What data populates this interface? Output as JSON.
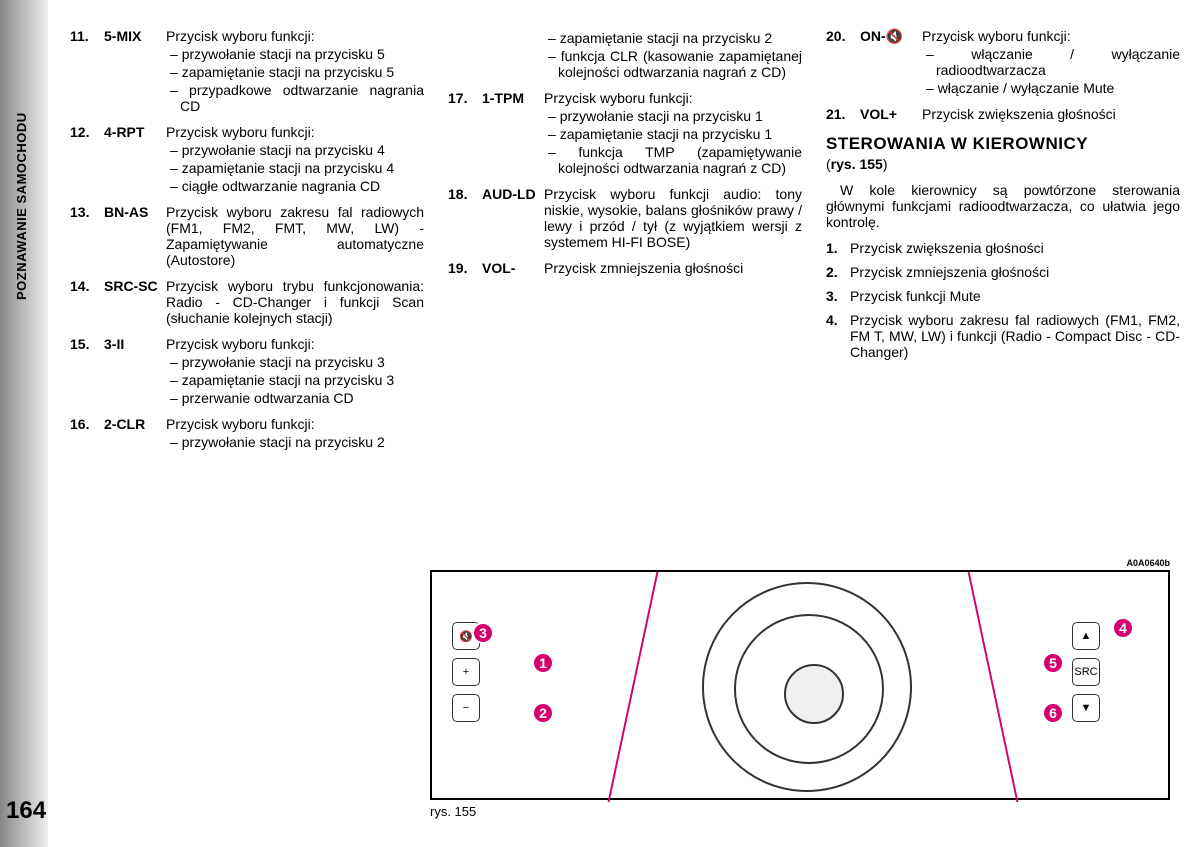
{
  "sideTab": "POZNAWANIE SAMOCHODU",
  "pageNumber": "164",
  "col1": [
    {
      "num": "11.",
      "label": "5-MIX",
      "lead": "Przycisk wyboru funkcji:",
      "subs": [
        "przywołanie stacji na przycisku 5",
        "zapamiętanie stacji na przycisku 5",
        "przypadkowe odtwarzanie nagrania CD"
      ]
    },
    {
      "num": "12.",
      "label": "4-RPT",
      "lead": "Przycisk wyboru funkcji:",
      "subs": [
        "przywołanie stacji na przycisku 4",
        "zapamiętanie stacji na przycisku 4",
        "ciągłe odtwarzanie nagrania CD"
      ]
    },
    {
      "num": "13.",
      "label": "BN-AS",
      "lead": "Przycisk wyboru zakresu fal radiowych (FM1, FM2, FMT, MW, LW) - Zapamiętywanie automatyczne (Autostore)",
      "subs": []
    },
    {
      "num": "14.",
      "label": "SRC-SC",
      "lead": "Przycisk wyboru trybu funkcjonowania: Radio - CD-Changer i funkcji Scan (słuchanie kolejnych stacji)",
      "subs": []
    },
    {
      "num": "15.",
      "label": "3-II",
      "lead": "Przycisk wyboru funkcji:",
      "subs": [
        "przywołanie stacji na przycisku 3",
        "zapamiętanie stacji na przycisku 3",
        "przerwanie odtwarzania CD"
      ]
    },
    {
      "num": "16.",
      "label": "2-CLR",
      "lead": "Przycisk wyboru funkcji:",
      "subs": [
        "przywołanie stacji na przycisku 2"
      ]
    }
  ],
  "col2top": {
    "subs": [
      "zapamiętanie stacji na przycisku 2",
      "funkcja CLR (kasowanie zapamiętanej kolejności odtwarzania nagrań z CD)"
    ]
  },
  "col2": [
    {
      "num": "17.",
      "label": "1-TPM",
      "lead": "Przycisk wyboru funkcji:",
      "subs": [
        "przywołanie stacji na przycisku 1",
        "zapamiętanie stacji na przycisku 1",
        "funkcja TMP (zapamiętywanie kolejności odtwarzania nagrań z CD)"
      ]
    },
    {
      "num": "18.",
      "label": "AUD-LD",
      "lead": "Przycisk wyboru funkcji audio: tony niskie, wysokie, balans głośników prawy / lewy i przód / tył (z wyjątkiem wersji z systemem HI-FI BOSE)",
      "subs": []
    },
    {
      "num": "19.",
      "label": "VOL-",
      "lead": "Przycisk zmniejszenia głośności",
      "subs": []
    }
  ],
  "col3top": [
    {
      "num": "20.",
      "label": "ON-🔇",
      "lead": "Przycisk wyboru funkcji:",
      "subs": [
        "włączanie / wyłączanie radioodtwarzacza",
        "włączanie / wyłączanie Mute"
      ]
    },
    {
      "num": "21.",
      "label": "VOL+",
      "lead": "Przycisk zwiększenia głośności",
      "subs": []
    }
  ],
  "heading": "STEROWANIA W KIEROWNICY",
  "subhead": "(rys. 155)",
  "para": "W kole kierownicy są powtórzone sterowania głównymi funkcjami radioodtwarzacza, co ułatwia jego kontrolę.",
  "numlist": [
    {
      "n": "1.",
      "t": "Przycisk zwiększenia głośności"
    },
    {
      "n": "2.",
      "t": "Przycisk zmniejszenia głośności"
    },
    {
      "n": "3.",
      "t": "Przycisk funkcji Mute"
    },
    {
      "n": "4.",
      "t": "Przycisk wyboru zakresu fal radiowych (FM1, FM2, FM T, MW, LW) i funkcji (Radio - Compact Disc - CD-Changer)"
    }
  ],
  "figure": {
    "code": "A0A0640b",
    "caption": "rys. 155",
    "callouts": [
      "1",
      "2",
      "3",
      "4",
      "5",
      "6"
    ],
    "leftButtons": [
      "🔇",
      "+",
      "−"
    ],
    "rightButtons": [
      "▲",
      "SRC",
      "▼"
    ]
  }
}
